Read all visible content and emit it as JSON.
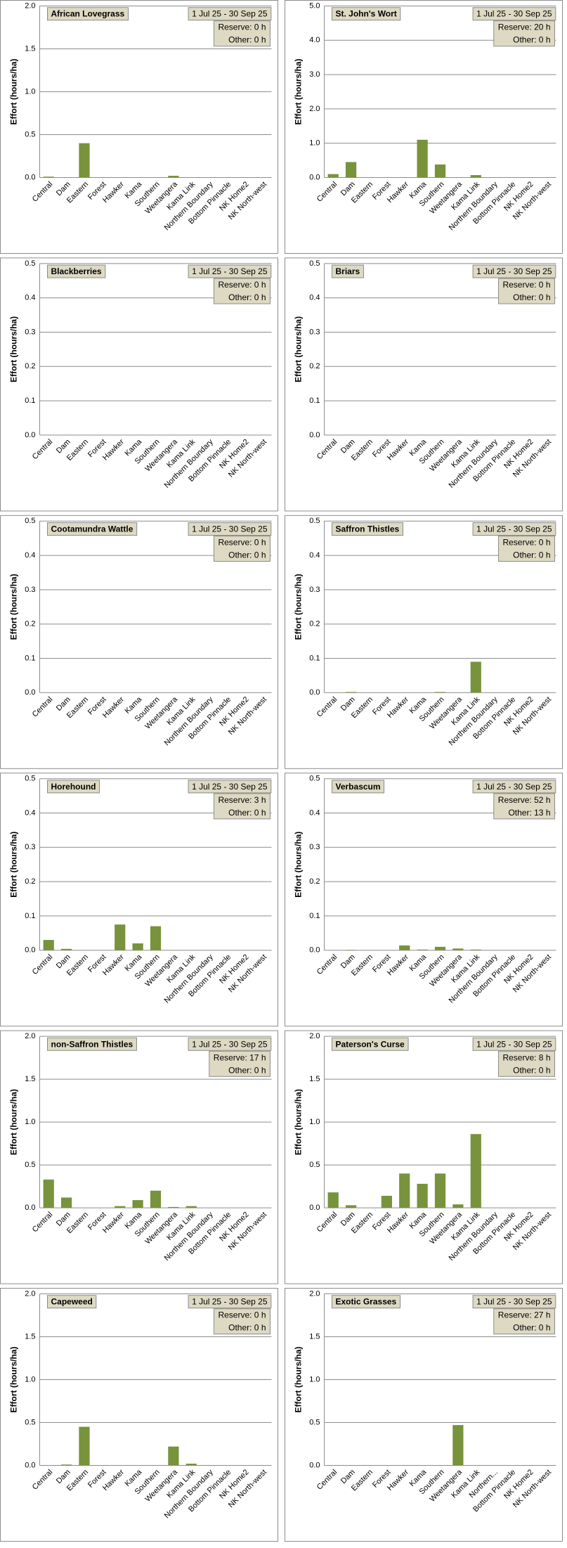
{
  "chart_data": [
    {
      "type": "bar",
      "title": "African Lovegrass",
      "subtitle": "1 Jul 25  -  30 Sep 25",
      "annotations": [
        "Reserve: 0 h",
        "Other: 0 h"
      ],
      "ylabel": "Effort  (hours/ha)",
      "color": "#77933c",
      "categories": [
        "Central",
        "Dam",
        "Eastern",
        "Forest",
        "Hawker",
        "Kama",
        "Southern",
        "Weetangera",
        "Kama Link",
        "Northern Boundary",
        "Bottom Pinnacle",
        "NK Home2",
        "NK North-west"
      ],
      "values": [
        0.01,
        0,
        0.4,
        0,
        0,
        0,
        0,
        0.02,
        0,
        0,
        0,
        0,
        0
      ],
      "ylim": [
        0,
        2
      ],
      "yticks": [
        {
          "value": 0,
          "label": "0.0"
        },
        0.5,
        {
          "value": 1,
          "label": "1.0"
        },
        1.5,
        {
          "value": 2,
          "label": "2.0"
        }
      ],
      "grid": true
    },
    {
      "type": "bar",
      "title": "St. John's Wort",
      "subtitle": "1 Jul 25  -  30 Sep 25",
      "annotations": [
        "Reserve: 20 h",
        "Other: 0 h"
      ],
      "ylabel": "Effort  (hours/ha)",
      "color": "#77933c",
      "categories": [
        "Central",
        "Dam",
        "Eastern",
        "Forest",
        "Hawker",
        "Kama",
        "Southern",
        "Weetangera",
        "Kama Link",
        "Northern Boundary",
        "Bottom Pinnacle",
        "NK Home2",
        "NK North-west"
      ],
      "values": [
        0.1,
        0.45,
        0,
        0,
        0,
        1.1,
        0.38,
        0,
        0.07,
        0,
        0,
        0,
        0
      ],
      "ylim": [
        0,
        5
      ],
      "yticks": [
        {
          "value": 0,
          "label": "0.0"
        },
        {
          "value": 1,
          "label": "1.0"
        },
        {
          "value": 2,
          "label": "2.0"
        },
        {
          "value": 3,
          "label": "3.0"
        },
        {
          "value": 4,
          "label": "4.0"
        },
        {
          "value": 5,
          "label": "5.0"
        }
      ],
      "grid": true
    },
    {
      "type": "bar",
      "title": "Blackberries",
      "subtitle": "1 Jul 25  -  30 Sep 25",
      "annotations": [
        "Reserve: 0 h",
        "Other: 0 h"
      ],
      "ylabel": "Effort  (hours/ha)",
      "color": "#77933c",
      "categories": [
        "Central",
        "Dam",
        "Eastern",
        "Forest",
        "Hawker",
        "Kama",
        "Southern",
        "Weetangera",
        "Kama Link",
        "Northern Boundary",
        "Bottom Pinnacle",
        "NK Home2",
        "NK North-west"
      ],
      "values": [
        0,
        0,
        0,
        0,
        0,
        0,
        0,
        0,
        0,
        0,
        0,
        0,
        0
      ],
      "ylim": [
        0,
        0.5
      ],
      "yticks": [
        {
          "value": 0,
          "label": "0.0"
        },
        0.1,
        0.2,
        0.3,
        0.4,
        0.5
      ],
      "grid": true
    },
    {
      "type": "bar",
      "title": "Briars",
      "subtitle": "1 Jul 25  -  30 Sep 25",
      "annotations": [
        "Reserve: 0 h",
        "Other: 0 h"
      ],
      "ylabel": "Effort  (hours/ha)",
      "color": "#77933c",
      "categories": [
        "Central",
        "Dam",
        "Eastern",
        "Forest",
        "Hawker",
        "Kama",
        "Southern",
        "Weetangera",
        "Kama Link",
        "Northern Boundary",
        "Bottom Pinnacle",
        "NK Home2",
        "NK North-west"
      ],
      "values": [
        0,
        0,
        0,
        0,
        0,
        0,
        0,
        0,
        0,
        0,
        0,
        0,
        0
      ],
      "ylim": [
        0,
        0.5
      ],
      "yticks": [
        {
          "value": 0,
          "label": "0.0"
        },
        0.1,
        0.2,
        0.3,
        0.4,
        0.5
      ],
      "grid": true
    },
    {
      "type": "bar",
      "title": "Cootamundra Wattle",
      "subtitle": "1 Jul 25  -  30 Sep 25",
      "annotations": [
        "Reserve: 0 h",
        "Other: 0 h"
      ],
      "ylabel": "Effort  (hours/ha)",
      "color": "#77933c",
      "categories": [
        "Central",
        "Dam",
        "Eastern",
        "Forest",
        "Hawker",
        "Kama",
        "Southern",
        "Weetangera",
        "Kama Link",
        "Northern Boundary",
        "Bottom Pinnacle",
        "NK Home2",
        "NK North-west"
      ],
      "values": [
        0,
        0,
        0,
        0,
        0,
        0,
        0,
        0,
        0,
        0,
        0,
        0,
        0
      ],
      "ylim": [
        0,
        0.5
      ],
      "yticks": [
        {
          "value": 0,
          "label": "0.0"
        },
        0.1,
        0.2,
        0.3,
        0.4,
        0.5
      ],
      "grid": true
    },
    {
      "type": "bar",
      "title": "Saffron Thistles",
      "subtitle": "1 Jul 25  -  30 Sep 25",
      "annotations": [
        "Reserve: 0 h",
        "Other: 0 h"
      ],
      "ylabel": "Effort  (hours/ha)",
      "color": "#77933c",
      "categories": [
        "Central",
        "Dam",
        "Eastern",
        "Forest",
        "Hawker",
        "Kama",
        "Southern",
        "Weetangera",
        "Kama Link",
        "Northern Boundary",
        "Bottom Pinnacle",
        "NK Home2",
        "NK North-west"
      ],
      "values": [
        0,
        0.002,
        0,
        0,
        0,
        0,
        0.002,
        0,
        0.09,
        0,
        0,
        0,
        0
      ],
      "ylim": [
        0,
        0.5
      ],
      "yticks": [
        {
          "value": 0,
          "label": "0.0"
        },
        0.1,
        0.2,
        0.3,
        0.4,
        0.5
      ],
      "grid": true
    },
    {
      "type": "bar",
      "title": "Horehound",
      "subtitle": "1 Jul 25  -  30 Sep 25",
      "annotations": [
        "Reserve: 3 h",
        "Other: 0 h"
      ],
      "ylabel": "Effort  (hours/ha)",
      "color": "#77933c",
      "categories": [
        "Central",
        "Dam",
        "Eastern",
        "Forest",
        "Hawker",
        "Kama",
        "Southern",
        "Weetangera",
        "Kama Link",
        "Northern Boundary",
        "Bottom Pinnacle",
        "NK Home2",
        "NK North-west"
      ],
      "values": [
        0.03,
        0.004,
        0,
        0,
        0.075,
        0.02,
        0.07,
        0,
        0,
        0,
        0,
        0,
        0
      ],
      "ylim": [
        0,
        0.5
      ],
      "yticks": [
        {
          "value": 0,
          "label": "0.0"
        },
        0.1,
        0.2,
        0.3,
        0.4,
        0.5
      ],
      "grid": true
    },
    {
      "type": "bar",
      "title": "Verbascum",
      "subtitle": "1 Jul 25  -  30 Sep 25",
      "annotations": [
        "Reserve: 52 h",
        "Other: 13 h"
      ],
      "ylabel": "Effort  (hours/ha)",
      "color": "#77933c",
      "categories": [
        "Central",
        "Dam",
        "Eastern",
        "Forest",
        "Hawker",
        "Kama",
        "Southern",
        "Weetangera",
        "Kama Link",
        "Northern Boundary",
        "Bottom Pinnacle",
        "NK Home2",
        "NK North-west"
      ],
      "values": [
        0,
        0.001,
        0,
        0,
        0.014,
        0.002,
        0.01,
        0.005,
        0.002,
        0,
        0,
        0,
        0
      ],
      "ylim": [
        0,
        0.5
      ],
      "yticks": [
        {
          "value": 0,
          "label": "0.0"
        },
        0.1,
        0.2,
        0.3,
        0.4,
        0.5
      ],
      "grid": true
    },
    {
      "type": "bar",
      "title": "non-Saffron Thistles",
      "subtitle": "1 Jul 25  -  30 Sep 25",
      "annotations": [
        "Reserve: 17 h",
        "Other: 0 h"
      ],
      "ylabel": "Effort  (hours/ha)",
      "color": "#77933c",
      "categories": [
        "Central",
        "Dam",
        "Eastern",
        "Forest",
        "Hawker",
        "Kama",
        "Southern",
        "Weetangera",
        "Kama Link",
        "Northern Boundary",
        "Bottom Pinnacle",
        "NK Home2",
        "NK North-west"
      ],
      "values": [
        0.33,
        0.12,
        0,
        0,
        0.02,
        0.09,
        0.2,
        0.01,
        0.02,
        0,
        0,
        0,
        0
      ],
      "ylim": [
        0,
        2
      ],
      "yticks": [
        {
          "value": 0,
          "label": "0.0"
        },
        0.5,
        {
          "value": 1,
          "label": "1.0"
        },
        1.5,
        {
          "value": 2,
          "label": "2.0"
        }
      ],
      "grid": true
    },
    {
      "type": "bar",
      "title": "Paterson's Curse",
      "subtitle": "1 Jul 25  -  30 Sep 25",
      "annotations": [
        "Reserve: 8 h",
        "Other: 0 h"
      ],
      "ylabel": "Effort  (hours/ha)",
      "color": "#77933c",
      "categories": [
        "Central",
        "Dam",
        "Eastern",
        "Forest",
        "Hawker",
        "Kama",
        "Southern",
        "Weetangera",
        "Kama Link",
        "Northern Boundary",
        "Bottom Pinnacle",
        "NK Home2",
        "NK North-west"
      ],
      "values": [
        0.18,
        0.03,
        0,
        0.14,
        0.4,
        0.28,
        0.4,
        0.04,
        0.86,
        0,
        0,
        0,
        0
      ],
      "ylim": [
        0,
        2
      ],
      "yticks": [
        {
          "value": 0,
          "label": "0.0"
        },
        0.5,
        {
          "value": 1,
          "label": "1.0"
        },
        1.5,
        {
          "value": 2,
          "label": "2.0"
        }
      ],
      "grid": true
    },
    {
      "type": "bar",
      "title": "Capeweed",
      "subtitle": "1 Jul 25  -  30 Sep 25",
      "annotations": [
        "Reserve: 0 h",
        "Other: 0 h"
      ],
      "ylabel": "Effort  (hours/ha)",
      "color": "#77933c",
      "categories": [
        "Central",
        "Dam",
        "Eastern",
        "Forest",
        "Hawker",
        "Kama",
        "Southern",
        "Weetangera",
        "Kama Link",
        "Northern Boundary",
        "Bottom Pinnacle",
        "NK Home2",
        "NK North-west"
      ],
      "values": [
        0,
        0.01,
        0.45,
        0,
        0,
        0,
        0,
        0.22,
        0.02,
        0,
        0,
        0,
        0
      ],
      "ylim": [
        0,
        2
      ],
      "yticks": [
        {
          "value": 0,
          "label": "0.0"
        },
        0.5,
        {
          "value": 1,
          "label": "1.0"
        },
        1.5,
        {
          "value": 2,
          "label": "2.0"
        }
      ],
      "grid": true
    },
    {
      "type": "bar",
      "title": "Exotic Grasses",
      "subtitle": "1 Jul 25  -  30 Sep 25",
      "annotations": [
        "Reserve: 27 h",
        "Other: 0 h"
      ],
      "ylabel": "Effort  (hours/ha)",
      "color": "#77933c",
      "categories": [
        "Central",
        "Dam",
        "Eastern",
        "Forest",
        "Hawker",
        "Kama",
        "Southern",
        "Weetangera",
        "Kama Link",
        "Northern...",
        "Bottom Pinnacle",
        "NK Home2",
        "NK North-west"
      ],
      "values": [
        0,
        0,
        0,
        0,
        0,
        0,
        0,
        0.47,
        0,
        0,
        0,
        0,
        0
      ],
      "ylim": [
        0,
        2
      ],
      "yticks": [
        {
          "value": 0,
          "label": "0.0"
        },
        0.5,
        {
          "value": 1,
          "label": "1.0"
        },
        1.5,
        {
          "value": 2,
          "label": "2.0"
        }
      ],
      "grid": true
    }
  ]
}
